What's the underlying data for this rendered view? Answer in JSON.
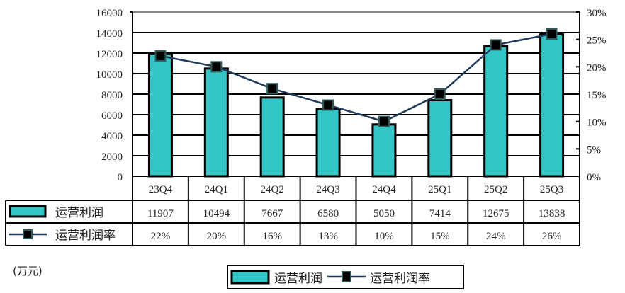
{
  "chart_data": {
    "type": "bar+line",
    "title": "",
    "categories": [
      "23Q4",
      "24Q1",
      "24Q2",
      "24Q3",
      "24Q4",
      "25Q1",
      "25Q2",
      "25Q3"
    ],
    "series": [
      {
        "name": "运营利润",
        "type": "bar",
        "axis": "left",
        "values": [
          11907,
          10494,
          7667,
          6580,
          5050,
          7414,
          12675,
          13838
        ],
        "color": "#33C6C6"
      },
      {
        "name": "运营利润率",
        "type": "line",
        "axis": "right",
        "values": [
          22,
          20,
          16,
          13,
          10,
          15,
          24,
          26
        ],
        "labels": [
          "22%",
          "20%",
          "16%",
          "13%",
          "10%",
          "15%",
          "24%",
          "26%"
        ],
        "color": "#1F3A5A"
      }
    ],
    "xlabel": "",
    "ylabel": "(万元)",
    "ylim": [
      0,
      16000
    ],
    "y_ticks": [
      "0",
      "2000",
      "4000",
      "6000",
      "8000",
      "10000",
      "12000",
      "14000",
      "16000"
    ],
    "y2lim": [
      0,
      30
    ],
    "y2_ticks": [
      "0%",
      "5%",
      "10%",
      "15%",
      "20%",
      "25%",
      "30%"
    ],
    "grid": true,
    "legend_position": "bottom",
    "data_table": true
  },
  "unit_label": "(万元)",
  "legend": {
    "bar_label": "运营利润",
    "line_label": "运营利润率"
  }
}
